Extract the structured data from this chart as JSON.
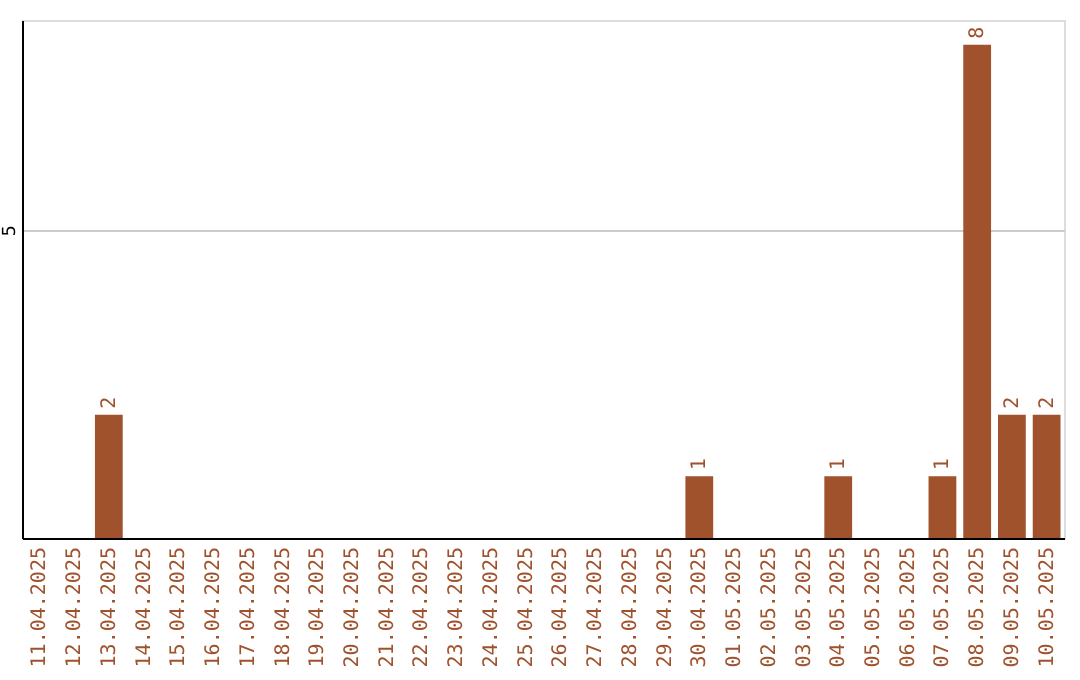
{
  "chart_data": {
    "type": "bar",
    "categories": [
      "11.04.2025",
      "12.04.2025",
      "13.04.2025",
      "14.04.2025",
      "15.04.2025",
      "16.04.2025",
      "17.04.2025",
      "18.04.2025",
      "19.04.2025",
      "20.04.2025",
      "21.04.2025",
      "22.04.2025",
      "23.04.2025",
      "24.04.2025",
      "25.04.2025",
      "26.04.2025",
      "27.04.2025",
      "28.04.2025",
      "29.04.2025",
      "30.04.2025",
      "01.05.2025",
      "02.05.2025",
      "03.05.2025",
      "04.05.2025",
      "05.05.2025",
      "06.05.2025",
      "07.05.2025",
      "08.05.2025",
      "09.05.2025",
      "10.05.2025"
    ],
    "values": [
      0,
      0,
      2,
      0,
      0,
      0,
      0,
      0,
      0,
      0,
      0,
      0,
      0,
      0,
      0,
      0,
      0,
      0,
      0,
      1,
      0,
      0,
      0,
      1,
      0,
      0,
      1,
      8,
      2,
      2
    ],
    "value_labels": [
      null,
      null,
      "2",
      null,
      null,
      null,
      null,
      null,
      null,
      null,
      null,
      null,
      null,
      null,
      null,
      null,
      null,
      null,
      null,
      "1",
      null,
      null,
      null,
      "1",
      null,
      null,
      "1",
      "8",
      "2",
      "2"
    ],
    "color": "#a0522d",
    "ylim": [
      0,
      8.4
    ],
    "yticks": [
      5
    ],
    "grid": "y"
  }
}
